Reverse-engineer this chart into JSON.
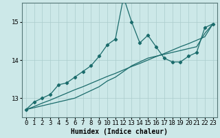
{
  "title": "",
  "xlabel": "Humidex (Indice chaleur)",
  "background_color": "#cce8e8",
  "grid_color": "#aacccc",
  "line_color": "#1a6b6b",
  "x_data": [
    0,
    1,
    2,
    3,
    4,
    5,
    6,
    7,
    8,
    9,
    10,
    11,
    12,
    13,
    14,
    15,
    16,
    17,
    18,
    19,
    20,
    21,
    22,
    23
  ],
  "line1": [
    12.7,
    12.9,
    13.0,
    13.1,
    13.35,
    13.4,
    13.55,
    13.7,
    13.85,
    14.1,
    14.4,
    14.55,
    15.65,
    15.0,
    14.45,
    14.65,
    14.35,
    14.05,
    13.95,
    13.95,
    14.1,
    14.2,
    14.85,
    14.95
  ],
  "line2": [
    12.7,
    12.78,
    12.87,
    12.95,
    13.04,
    13.13,
    13.22,
    13.3,
    13.39,
    13.48,
    13.57,
    13.65,
    13.74,
    13.83,
    13.91,
    14.0,
    14.09,
    14.17,
    14.26,
    14.35,
    14.43,
    14.52,
    14.61,
    14.95
  ],
  "line3": [
    12.7,
    12.75,
    12.8,
    12.85,
    12.9,
    12.95,
    13.0,
    13.1,
    13.2,
    13.3,
    13.45,
    13.55,
    13.7,
    13.85,
    13.95,
    14.05,
    14.1,
    14.15,
    14.2,
    14.25,
    14.3,
    14.35,
    14.7,
    14.95
  ],
  "ylim": [
    12.5,
    15.5
  ],
  "xlim_min": -0.5,
  "xlim_max": 23.5,
  "yticks": [
    13,
    14,
    15
  ],
  "xticks": [
    0,
    1,
    2,
    3,
    4,
    5,
    6,
    7,
    8,
    9,
    10,
    11,
    12,
    13,
    14,
    15,
    16,
    17,
    18,
    19,
    20,
    21,
    22,
    23
  ],
  "xlabel_fontsize": 7,
  "tick_fontsize": 6.5
}
